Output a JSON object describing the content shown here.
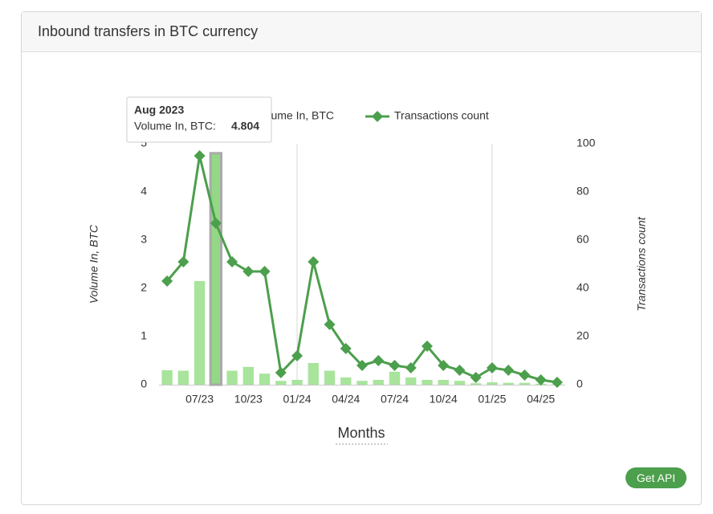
{
  "header": {
    "title": "Inbound transfers in BTC currency"
  },
  "button": {
    "label": "Get API"
  },
  "tooltip": {
    "title": "Aug 2023",
    "label": "Volume In, BTC:"
  },
  "chart_data": {
    "type": "bar-line",
    "y_label": "Volume In, BTC",
    "y2_label": "Transactions count",
    "x_label": "Months",
    "categories": [
      null,
      null,
      "07/23",
      null,
      null,
      "10/23",
      null,
      null,
      "01/24",
      null,
      null,
      "04/24",
      null,
      null,
      "07/24",
      null,
      null,
      "10/24",
      null,
      null,
      "01/25",
      null,
      null,
      "04/25",
      null
    ],
    "series": [
      {
        "name": "Volume In, BTC",
        "type": "bar",
        "color": "#a8e49c",
        "values": [
          0.3,
          0.29,
          2.15,
          4.804,
          0.29,
          0.37,
          0.23,
          0.08,
          0.1,
          0.45,
          0.29,
          0.15,
          0.08,
          0.1,
          0.27,
          0.15,
          0.1,
          0.1,
          0.08,
          0.03,
          0.05,
          0.04,
          0.04,
          0.02,
          0.01
        ]
      },
      {
        "name": "Transactions count",
        "type": "line",
        "axis": "y2",
        "color": "#4c9f4c",
        "values": [
          43,
          51,
          95,
          67,
          51,
          47,
          47,
          5,
          12,
          51,
          25,
          15,
          8,
          10,
          8,
          7,
          16,
          8,
          6,
          3,
          7,
          6,
          4,
          2,
          1
        ]
      }
    ],
    "ylim": [
      0,
      5
    ],
    "yticks": [
      0,
      1,
      2,
      3,
      4,
      5
    ],
    "y2lim": [
      0,
      100
    ],
    "y2ticks": [
      0,
      20,
      40,
      60,
      80,
      100
    ],
    "grid": false
  }
}
